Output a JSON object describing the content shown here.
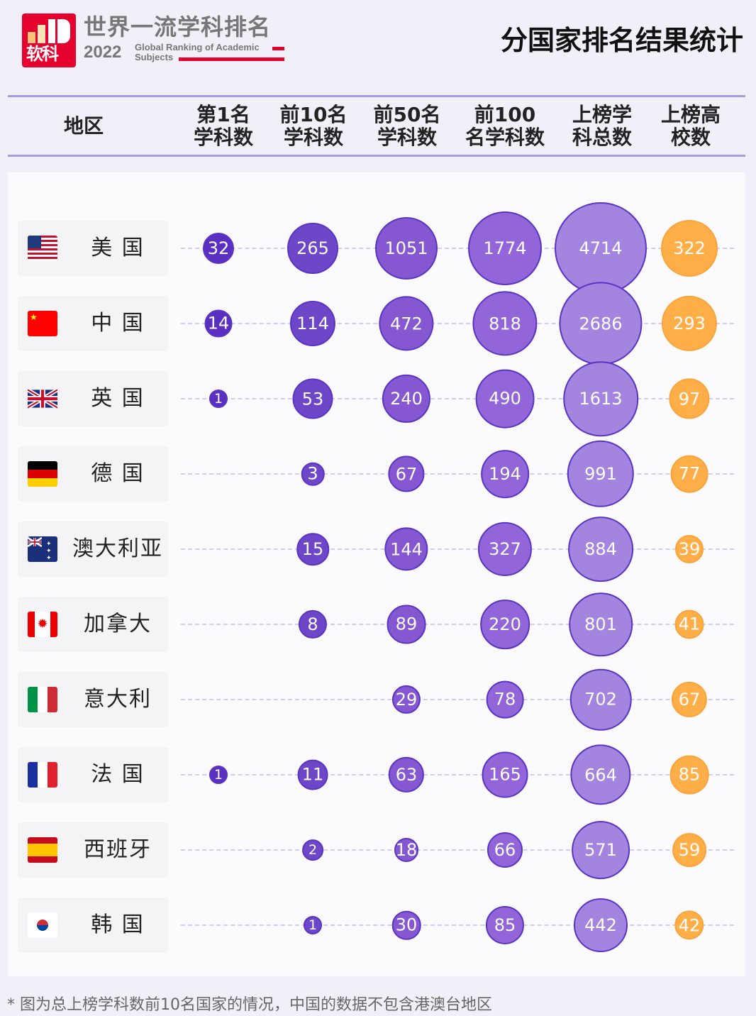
{
  "brand": {
    "logo_text": "软科",
    "cn": "世界一流学科排名",
    "year": "2022",
    "en_line1": "Global Ranking of Academic",
    "en_line2": "Subjects"
  },
  "title": "分国家排名结果统计",
  "headers": [
    "地区",
    "第1名\n学科数",
    "前10名\n学科数",
    "前50名\n学科数",
    "前100名\n学科数",
    "上榜学\n科总数",
    "上榜\n高校数"
  ],
  "colors": {
    "col1": "#5b30c0",
    "col2": "#6e46c8",
    "col3": "#8558d2",
    "col4": "#9265d8",
    "col5": "#a384de",
    "col6": "#ffae48",
    "border": "#5a34c4",
    "border_orange": "#f9a53c"
  },
  "chart_data": {
    "type": "bubble-table",
    "columns": [
      "第1名学科数",
      "前10名学科数",
      "前50名学科数",
      "前100名学科数",
      "上榜学科总数",
      "上榜高校数"
    ],
    "rows": [
      {
        "region": "美 国",
        "flag": "us-flag-icon",
        "values": [
          32,
          265,
          1051,
          1774,
          4714,
          322
        ]
      },
      {
        "region": "中 国",
        "flag": "china-flag-icon",
        "values": [
          14,
          114,
          472,
          818,
          2686,
          293
        ]
      },
      {
        "region": "英 国",
        "flag": "uk-flag-icon",
        "values": [
          1,
          53,
          240,
          490,
          1613,
          97
        ]
      },
      {
        "region": "德 国",
        "flag": "germany-flag-icon",
        "values": [
          null,
          3,
          67,
          194,
          991,
          77
        ]
      },
      {
        "region": "澳大利亚",
        "flag": "australia-flag-icon",
        "values": [
          null,
          15,
          144,
          327,
          884,
          39
        ]
      },
      {
        "region": "加拿大",
        "flag": "canada-flag-icon",
        "values": [
          null,
          8,
          89,
          220,
          801,
          41
        ]
      },
      {
        "region": "意大利",
        "flag": "italy-flag-icon",
        "values": [
          null,
          null,
          29,
          78,
          702,
          67
        ]
      },
      {
        "region": "法 国",
        "flag": "france-flag-icon",
        "values": [
          1,
          11,
          63,
          165,
          664,
          85
        ]
      },
      {
        "region": "西班牙",
        "flag": "spain-flag-icon",
        "values": [
          null,
          2,
          18,
          66,
          571,
          59
        ]
      },
      {
        "region": "韩 国",
        "flag": "korea-flag-icon",
        "values": [
          null,
          1,
          30,
          85,
          442,
          42
        ]
      }
    ]
  },
  "footnote": "* 图为总上榜学科数前10名国家的情况，中国的数据不包含港澳台地区"
}
